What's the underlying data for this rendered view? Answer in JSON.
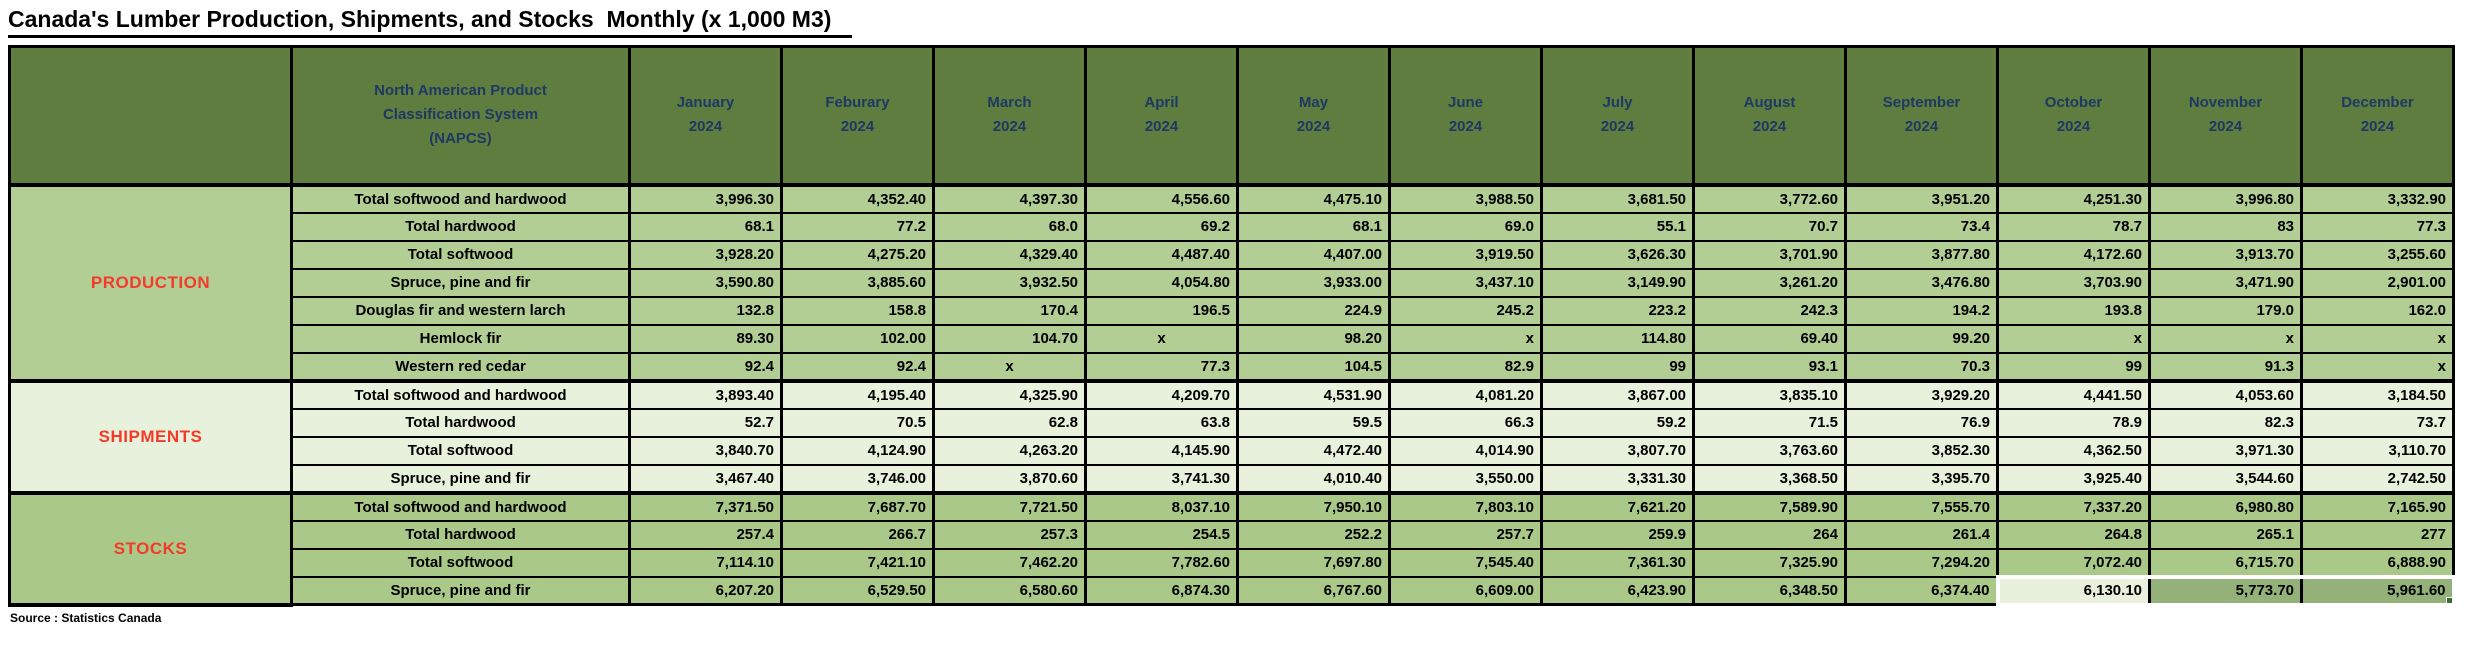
{
  "title": "Canada's Lumber Production, Shipments, and Stocks  Monthly (x 1,000 M3) ",
  "source_note": "Source : Statistics Canada",
  "table": {
    "napcs_header_lines": [
      "North American Product",
      "Classification System",
      "(NAPCS)"
    ],
    "months": [
      "January",
      "Feburary",
      "March",
      "April",
      "May",
      "June",
      "July",
      "August",
      "September",
      "October",
      "November",
      "December"
    ],
    "year": "2024",
    "sections": [
      {
        "label": "PRODUCTION",
        "rows": [
          {
            "label": "Total softwood and hardwood",
            "values": [
              "3,996.30",
              "4,352.40",
              "4,397.30",
              "4,556.60",
              "4,475.10",
              "3,988.50",
              "3,681.50",
              "3,772.60",
              "3,951.20",
              "4,251.30",
              "3,996.80",
              "3,332.90"
            ]
          },
          {
            "label": "Total hardwood",
            "values": [
              "68.1",
              "77.2",
              "68.0",
              "69.2",
              "68.1",
              "69.0",
              "55.1",
              "70.7",
              "73.4",
              "78.7",
              "83",
              "77.3"
            ]
          },
          {
            "label": "Total softwood",
            "values": [
              "3,928.20",
              "4,275.20",
              "4,329.40",
              "4,487.40",
              "4,407.00",
              "3,919.50",
              "3,626.30",
              "3,701.90",
              "3,877.80",
              "4,172.60",
              "3,913.70",
              "3,255.60"
            ]
          },
          {
            "label": "Spruce, pine and fir",
            "values": [
              "3,590.80",
              "3,885.60",
              "3,932.50",
              "4,054.80",
              "3,933.00",
              "3,437.10",
              "3,149.90",
              "3,261.20",
              "3,476.80",
              "3,703.90",
              "3,471.90",
              "2,901.00"
            ]
          },
          {
            "label": "Douglas fir and western larch",
            "values": [
              "132.8",
              "158.8",
              "170.4",
              "196.5",
              "224.9",
              "245.2",
              "223.2",
              "242.3",
              "194.2",
              "193.8",
              "179.0",
              "162.0"
            ]
          },
          {
            "label": "Hemlock fir",
            "values": [
              "89.30",
              "102.00",
              "104.70",
              "x",
              "98.20",
              "x",
              "114.80",
              "69.40",
              "99.20",
              "x",
              "x",
              "x"
            ]
          },
          {
            "label": "Western red cedar",
            "values": [
              "92.4",
              "92.4",
              "x",
              "77.3",
              "104.5",
              "82.9",
              "99",
              "93.1",
              "70.3",
              "99",
              "91.3",
              "x"
            ]
          }
        ]
      },
      {
        "label": "SHIPMENTS",
        "rows": [
          {
            "label": "Total softwood and hardwood",
            "values": [
              "3,893.40",
              "4,195.40",
              "4,325.90",
              "4,209.70",
              "4,531.90",
              "4,081.20",
              "3,867.00",
              "3,835.10",
              "3,929.20",
              "4,441.50",
              "4,053.60",
              "3,184.50"
            ]
          },
          {
            "label": "Total hardwood",
            "values": [
              "52.7",
              "70.5",
              "62.8",
              "63.8",
              "59.5",
              "66.3",
              "59.2",
              "71.5",
              "76.9",
              "78.9",
              "82.3",
              "73.7"
            ]
          },
          {
            "label": "Total softwood",
            "values": [
              "3,840.70",
              "4,124.90",
              "4,263.20",
              "4,145.90",
              "4,472.40",
              "4,014.90",
              "3,807.70",
              "3,763.60",
              "3,852.30",
              "4,362.50",
              "3,971.30",
              "3,110.70"
            ]
          },
          {
            "label": "Spruce, pine and fir",
            "values": [
              "3,467.40",
              "3,746.00",
              "3,870.60",
              "3,741.30",
              "4,010.40",
              "3,550.00",
              "3,331.30",
              "3,368.50",
              "3,395.70",
              "3,925.40",
              "3,544.60",
              "2,742.50"
            ]
          }
        ]
      },
      {
        "label": "STOCKS",
        "rows": [
          {
            "label": "Total softwood and hardwood",
            "values": [
              "7,371.50",
              "7,687.70",
              "7,721.50",
              "8,037.10",
              "7,950.10",
              "7,803.10",
              "7,621.20",
              "7,589.90",
              "7,555.70",
              "7,337.20",
              "6,980.80",
              "7,165.90"
            ]
          },
          {
            "label": "Total hardwood",
            "values": [
              "257.4",
              "266.7",
              "257.3",
              "254.5",
              "252.2",
              "257.7",
              "259.9",
              "264",
              "261.4",
              "264.8",
              "265.1",
              "277"
            ]
          },
          {
            "label": "Total softwood",
            "values": [
              "7,114.10",
              "7,421.10",
              "7,462.20",
              "7,782.60",
              "7,697.80",
              "7,545.40",
              "7,361.30",
              "7,325.90",
              "7,294.20",
              "7,072.40",
              "6,715.70",
              "6,888.90"
            ]
          },
          {
            "label": "Spruce, pine and fir",
            "values": [
              "6,207.20",
              "6,529.50",
              "6,580.60",
              "6,874.30",
              "6,767.60",
              "6,609.00",
              "6,423.90",
              "6,348.50",
              "6,374.40",
              "6,130.10",
              "5,773.70",
              "5,961.60"
            ]
          }
        ]
      }
    ],
    "centered_cells": [
      {
        "section": 0,
        "row": 5,
        "col": 3
      },
      {
        "section": 0,
        "row": 6,
        "col": 2
      }
    ],
    "selection": {
      "section": 2,
      "row": 3,
      "cols": [
        9,
        10,
        11
      ],
      "active_col": 9
    }
  },
  "colors": {
    "header_bg": "#5e7d3e",
    "header_text": "#1f3864",
    "production_bg": "#b2ce94",
    "shipments_bg": "#e8f1dc",
    "stocks_bg": "#aac888",
    "section_label_red": "#f43b2a",
    "selection_fill": "#94b17a",
    "selection_active_fill": "#e9f1dd",
    "selection_handle": "#3d6b33"
  }
}
